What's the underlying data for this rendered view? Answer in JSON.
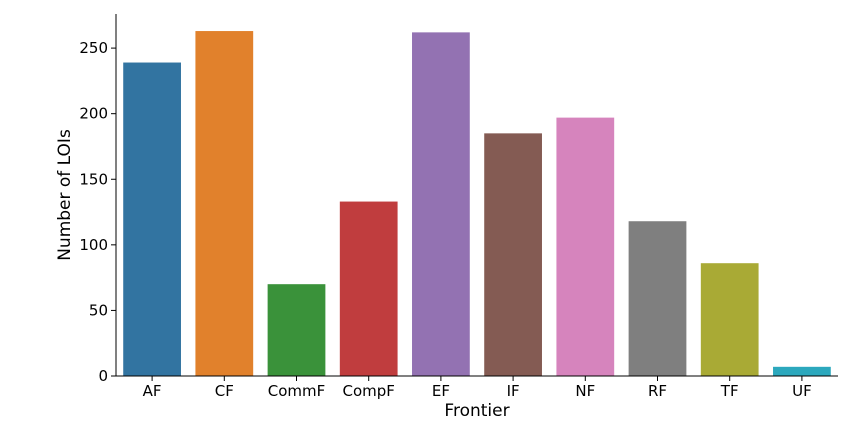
{
  "chart_data": {
    "type": "bar",
    "title": "",
    "xlabel": "Frontier",
    "ylabel": "Number of LOIs",
    "categories": [
      "AF",
      "CF",
      "CommF",
      "CompF",
      "EF",
      "IF",
      "NF",
      "RF",
      "TF",
      "UF"
    ],
    "values": [
      239,
      263,
      70,
      133,
      262,
      185,
      197,
      118,
      86,
      7
    ],
    "ylim": [
      0,
      276
    ],
    "yticks": [
      0,
      50,
      100,
      150,
      200,
      250
    ],
    "grid": false,
    "colors": [
      "#3274a1",
      "#e1812c",
      "#3a923a",
      "#c03d3e",
      "#9372b2",
      "#845b53",
      "#d684bd",
      "#7f7f7f",
      "#a9aa35",
      "#2ca8bd"
    ]
  }
}
